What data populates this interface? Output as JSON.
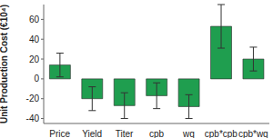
{
  "chart_data": {
    "type": "bar",
    "categories": [
      "Price",
      "Yield",
      "Titer",
      "cpb",
      "wq",
      "cpb*cpb",
      "cpb*wq"
    ],
    "values": [
      14,
      -20,
      -27,
      -17,
      -28,
      53,
      20
    ],
    "errors": [
      12,
      12,
      13,
      13,
      12,
      22,
      12
    ],
    "color": "#1f9e4f",
    "y_label": "Unit Production Cost (€10⁴)",
    "ylim": [
      -45,
      75
    ],
    "yticks": [
      -40,
      -20,
      0,
      20,
      40,
      60
    ],
    "grid": false
  }
}
